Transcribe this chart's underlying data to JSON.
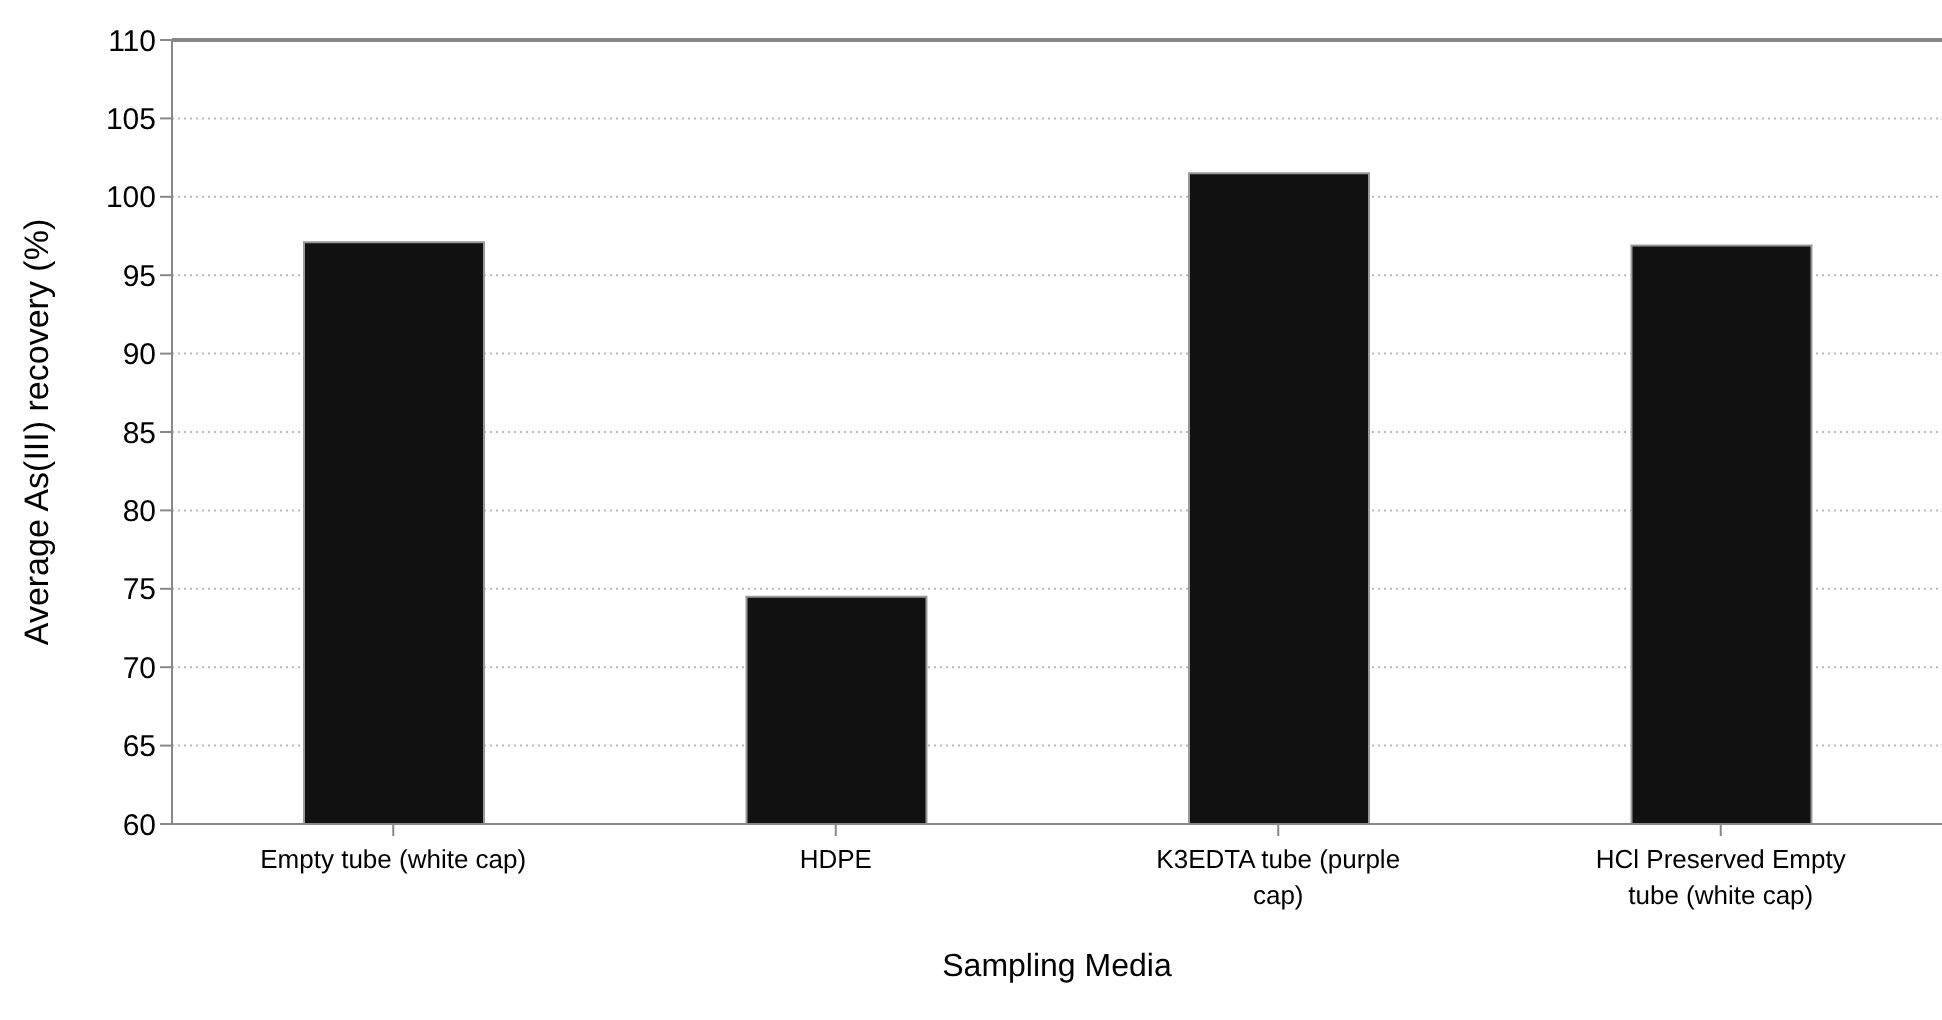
{
  "chart_data": {
    "type": "bar",
    "xlabel": "Sampling Media",
    "ylabel": "Average As(III) recovery (%)",
    "categories": [
      "Empty tube (white cap)",
      "HDPE",
      "K3EDTA tube (purple cap)",
      "HCl Preserved Empty tube (white cap)"
    ],
    "values": [
      97.1,
      74.5,
      101.5,
      96.9
    ],
    "color": "#111111",
    "ylim": [
      60,
      110
    ],
    "yticks": [
      60,
      65,
      70,
      75,
      80,
      85,
      90,
      95,
      100,
      105,
      110
    ],
    "grid": "y"
  }
}
